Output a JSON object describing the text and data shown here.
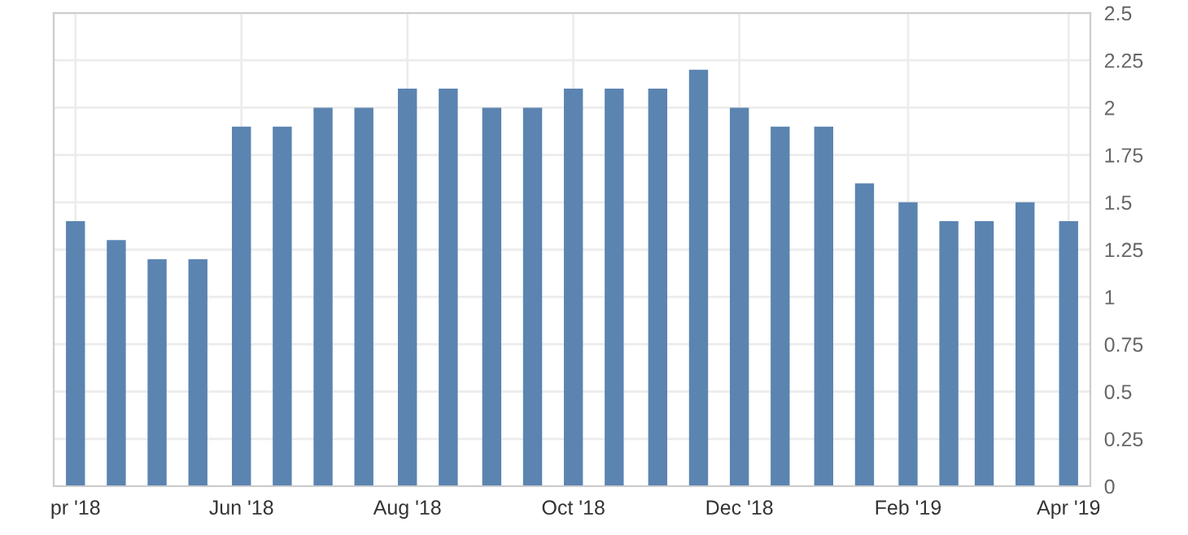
{
  "chart_data": {
    "type": "bar",
    "x": [
      "2018-04-01",
      "2018-04-16",
      "2018-05-01",
      "2018-05-16",
      "2018-06-01",
      "2018-06-16",
      "2018-07-01",
      "2018-07-16",
      "2018-08-01",
      "2018-08-16",
      "2018-09-01",
      "2018-09-16",
      "2018-10-01",
      "2018-10-16",
      "2018-11-01",
      "2018-11-16",
      "2018-12-01",
      "2018-12-16",
      "2019-01-01",
      "2019-01-16",
      "2019-02-01",
      "2019-02-16",
      "2019-03-01",
      "2019-03-16",
      "2019-04-01"
    ],
    "values": [
      1.4,
      1.3,
      1.2,
      1.2,
      1.9,
      1.9,
      2.0,
      2.0,
      2.1,
      2.1,
      2.0,
      2.0,
      2.1,
      2.1,
      2.1,
      2.2,
      2.0,
      1.9,
      1.9,
      1.6,
      1.5,
      1.4,
      1.4,
      1.5,
      1.4
    ],
    "color": "#5b84b1",
    "xlim": [
      "2018-03-24",
      "2019-04-09"
    ],
    "xticks": [
      {
        "value": "2018-04-01",
        "label": "pr '18"
      },
      {
        "value": "2018-06-01",
        "label": "Jun '18"
      },
      {
        "value": "2018-08-01",
        "label": "Aug '18"
      },
      {
        "value": "2018-10-01",
        "label": "Oct '18"
      },
      {
        "value": "2018-12-01",
        "label": "Dec '18"
      },
      {
        "value": "2019-02-01",
        "label": "Feb '19"
      },
      {
        "value": "2019-04-01",
        "label": "Apr '19"
      }
    ],
    "ylim": [
      0,
      2.5
    ],
    "yticks": [
      0,
      0.25,
      0.5,
      0.75,
      1,
      1.25,
      1.5,
      1.75,
      2,
      2.25,
      2.5
    ],
    "grid": true
  }
}
